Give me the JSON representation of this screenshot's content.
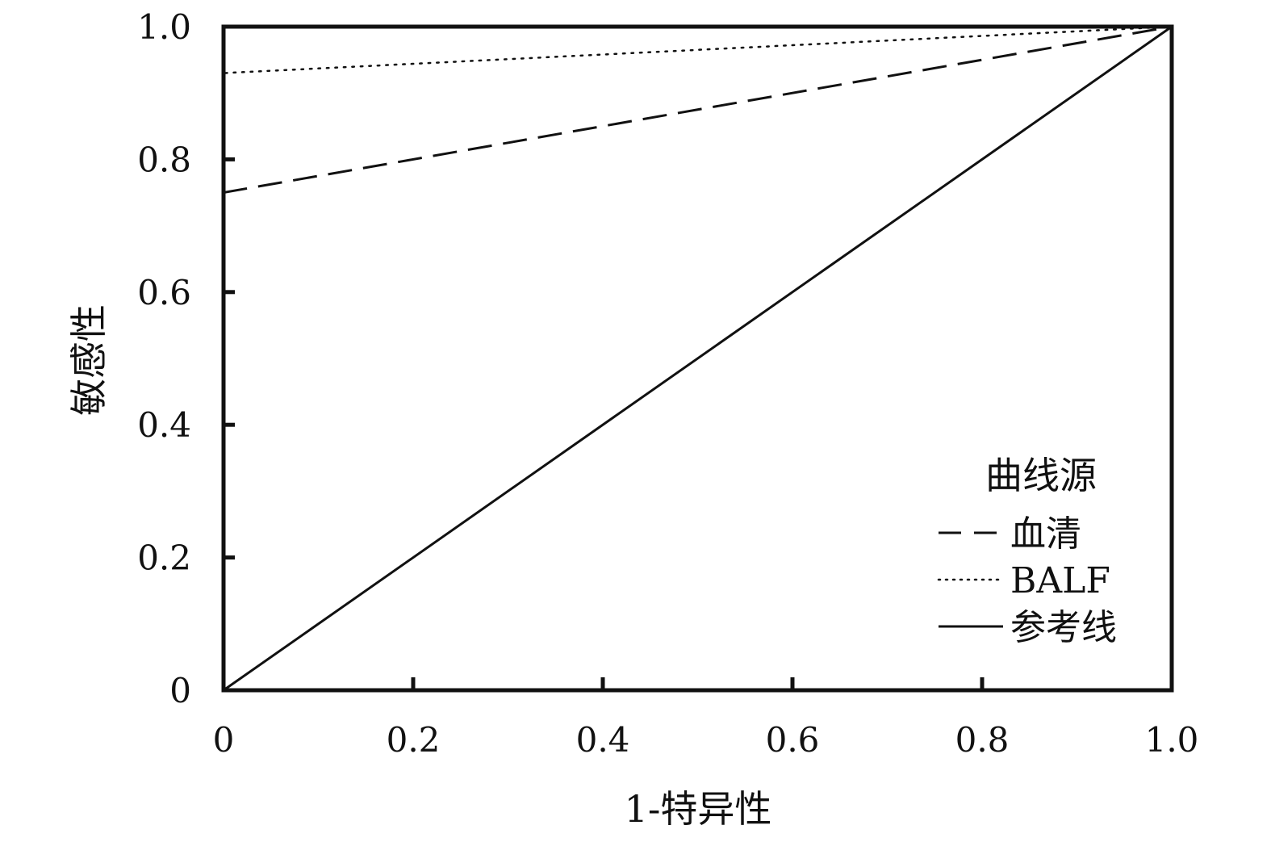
{
  "chart_data": {
    "type": "line",
    "title": "",
    "xlabel": "1-特异性",
    "ylabel": "敏感性",
    "xlim": [
      0,
      1
    ],
    "ylim": [
      0,
      1
    ],
    "grid": false,
    "x_ticks": [
      {
        "value": 0,
        "label": "0"
      },
      {
        "value": 0.2,
        "label": "0.2"
      },
      {
        "value": 0.4,
        "label": "0.4"
      },
      {
        "value": 0.6,
        "label": "0.6"
      },
      {
        "value": 0.8,
        "label": "0.8"
      },
      {
        "value": 1.0,
        "label": "1.0"
      }
    ],
    "y_ticks": [
      {
        "value": 0,
        "label": "0"
      },
      {
        "value": 0.2,
        "label": "0.2"
      },
      {
        "value": 0.4,
        "label": "0.4"
      },
      {
        "value": 0.6,
        "label": "0.6"
      },
      {
        "value": 0.8,
        "label": "0.8"
      },
      {
        "value": 1.0,
        "label": "1.0"
      }
    ],
    "legend": {
      "title": "曲线源",
      "position": "bottom-right"
    },
    "series": [
      {
        "name": "血清",
        "style": "dashed",
        "color": "#111111",
        "points": [
          [
            0,
            0
          ],
          [
            0,
            0.75
          ],
          [
            1.0,
            1.0
          ]
        ]
      },
      {
        "name": "BALF",
        "style": "dotted",
        "color": "#111111",
        "points": [
          [
            0,
            0
          ],
          [
            0,
            0.93
          ],
          [
            1.0,
            1.0
          ]
        ]
      },
      {
        "name": "参考线",
        "style": "solid",
        "color": "#111111",
        "points": [
          [
            0,
            0
          ],
          [
            1.0,
            1.0
          ]
        ]
      }
    ]
  }
}
